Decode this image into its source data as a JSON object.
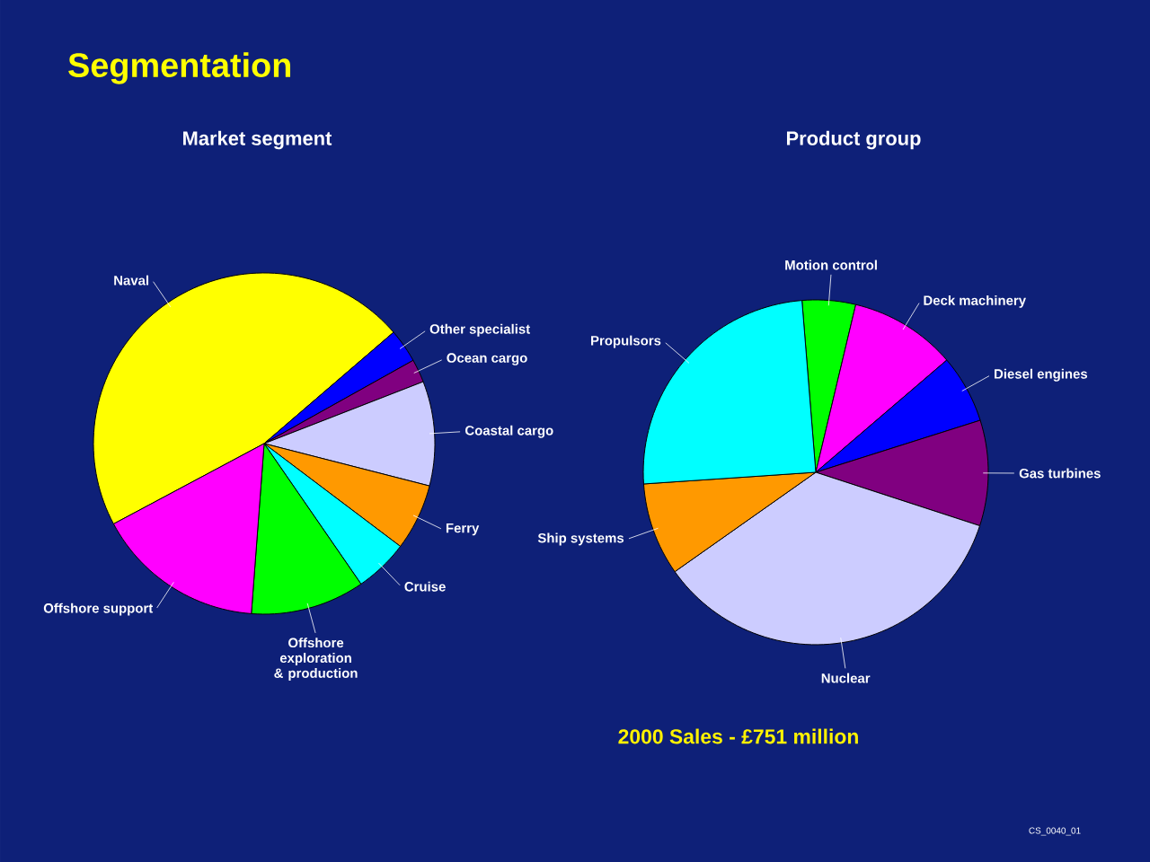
{
  "chart_data": [
    {
      "type": "pie",
      "title": "Segmentation",
      "subtitle": "Market segment",
      "categories": [
        "Naval",
        "Other specialist",
        "Ocean cargo",
        "Coastal cargo",
        "Ferry",
        "Cruise",
        "Offshore exploration & production",
        "Offshore support"
      ],
      "values": [
        46.5,
        3.2,
        2.2,
        9.9,
        6.3,
        5.1,
        10.8,
        16.0
      ],
      "colors": [
        "#ffff00",
        "#0000ff",
        "#800080",
        "#ccccff",
        "#ff9900",
        "#00ffff",
        "#00ff00",
        "#ff00ff"
      ]
    },
    {
      "type": "pie",
      "subtitle": "Product group",
      "categories": [
        "Motion control",
        "Deck machinery",
        "Diesel engines",
        "Gas turbines",
        "Nuclear",
        "Ship systems",
        "Propulsors"
      ],
      "values": [
        5.0,
        10.0,
        6.4,
        9.9,
        35.2,
        8.7,
        24.8
      ],
      "colors": [
        "#00ff00",
        "#ff00ff",
        "#0000ff",
        "#800080",
        "#ccccff",
        "#ff9900",
        "#00ffff"
      ],
      "annotations": [
        "2000 Sales -  £751 million",
        "CS_0040_01"
      ]
    }
  ]
}
